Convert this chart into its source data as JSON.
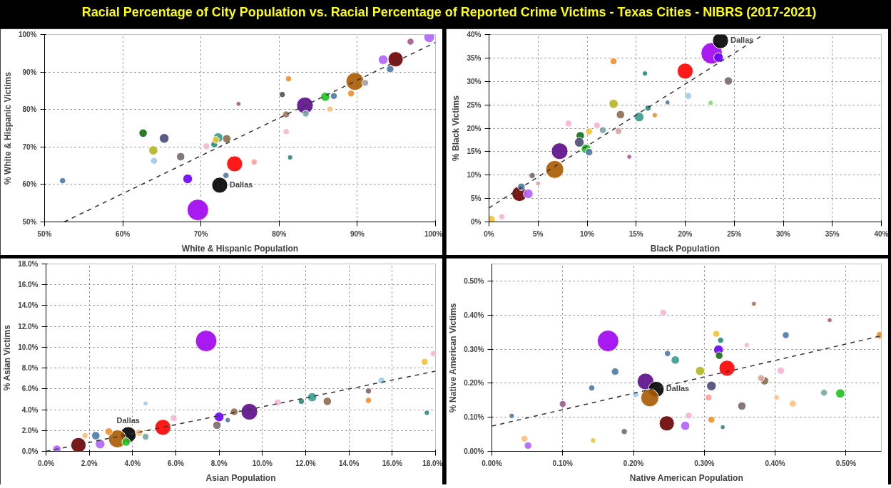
{
  "chart_data": [
    {
      "type": "bubble",
      "title": "Racial Percentage of City Population vs. Racial Percentage of Reported Crime Victims - Texas Cities - NIBRS (2017-2021)",
      "xlabel": "White & Hispanic Population",
      "ylabel": "% White & Hispanic Victims",
      "xlim": [
        50,
        100
      ],
      "ylim": [
        50,
        100
      ],
      "grid": true,
      "xticks": [
        {
          "value": 50,
          "label": "50%"
        },
        {
          "value": 60,
          "label": "60%"
        },
        {
          "value": 70,
          "label": "70%"
        },
        {
          "value": 80,
          "label": "80%"
        },
        {
          "value": 90,
          "label": "90%"
        },
        {
          "value": 100,
          "label": "100%"
        }
      ],
      "yticks": [
        {
          "value": 50,
          "label": "50%"
        },
        {
          "value": 60,
          "label": "60%"
        },
        {
          "value": 70,
          "label": "70%"
        },
        {
          "value": 80,
          "label": "80%"
        },
        {
          "value": 90,
          "label": "90%"
        },
        {
          "value": 100,
          "label": "100%"
        }
      ],
      "annotations": [
        {
          "text": "Dallas",
          "x": 72.4,
          "y": 59.8
        }
      ],
      "series": [
        {
          "type": "bubble",
          "x": [
            69.6,
            72.4,
            74.3,
            83.3,
            89.7,
            94.9,
            52.3,
            62.6,
            65.3,
            63.9,
            64.0,
            67.4,
            68.3,
            76.8,
            72.2,
            73.3,
            70.7,
            71.7,
            71.9,
            73.2,
            74.8,
            80.9,
            80.4,
            81.4,
            80.9,
            81.2,
            85.9,
            87.0,
            91.0,
            89.2,
            86.5,
            94.2,
            93.3,
            96.8,
            99.2,
            83.4
          ],
          "values": [
            53.2,
            59.8,
            65.5,
            81.1,
            87.5,
            93.4,
            61.0,
            73.7,
            72.3,
            69.1,
            66.3,
            67.4,
            61.5,
            66.0,
            72.5,
            72.2,
            70.2,
            70.7,
            71.9,
            62.4,
            81.5,
            78.7,
            84.0,
            67.2,
            74.1,
            88.2,
            83.4,
            83.6,
            87.1,
            84.3,
            80.1,
            90.8,
            93.3,
            98.1,
            99.3,
            78.9
          ],
          "sizes": [
            1,
            0.55,
            0.55,
            0.6,
            0.7,
            0.5,
            0.08,
            0.15,
            0.2,
            0.18,
            0.1,
            0.15,
            0.2,
            0.08,
            0.2,
            0.15,
            0.1,
            0.1,
            0.1,
            0.08,
            0.05,
            0.1,
            0.08,
            0.06,
            0.08,
            0.08,
            0.18,
            0.1,
            0.1,
            0.1,
            0.08,
            0.12,
            0.2,
            0.1,
            0.25,
            0.1
          ],
          "colors": [
            "#a000f0",
            "#000000",
            "#ff0000",
            "#5a0a8a",
            "#a85a00",
            "#6b0000",
            "#4e79a7",
            "#1a6b1a",
            "#4a4a7a",
            "#b5b520",
            "#9ecae9",
            "#7a6a6a",
            "#6a00ff",
            "#ff9d9a",
            "#3a9a90",
            "#8c6d50",
            "#f7b6d2",
            "#2a8a7a",
            "#f1c232",
            "#4e79a7",
            "#9e5b8a",
            "#9c755f",
            "#555555",
            "#2a8a7a",
            "#f7b6d2",
            "#f28e2b",
            "#20c020",
            "#4e79a7",
            "#a0a0a0",
            "#f28e2b",
            "#ffbe7d",
            "#4e79a7",
            "#b060ff",
            "#9e5b8a",
            "#b060ff",
            "#76a8a0"
          ]
        },
        {
          "type": "line",
          "x": [
            52.5,
            100
          ],
          "values": [
            50,
            97.9
          ],
          "color": "#333333",
          "line_style": "dashed"
        }
      ]
    },
    {
      "type": "bubble",
      "xlabel": "Black Population",
      "ylabel": "% Black Victims",
      "xlim": [
        0,
        40
      ],
      "ylim": [
        0,
        40
      ],
      "grid": true,
      "xticks": [
        {
          "value": 0,
          "label": "0%"
        },
        {
          "value": 5,
          "label": "5%"
        },
        {
          "value": 10,
          "label": "10%"
        },
        {
          "value": 15,
          "label": "15%"
        },
        {
          "value": 20,
          "label": "20%"
        },
        {
          "value": 25,
          "label": "25%"
        },
        {
          "value": 30,
          "label": "30%"
        },
        {
          "value": 35,
          "label": "35%"
        },
        {
          "value": 40,
          "label": "40%"
        }
      ],
      "yticks": [
        {
          "value": 0,
          "label": "0%"
        },
        {
          "value": 5,
          "label": "5%"
        },
        {
          "value": 10,
          "label": "10%"
        },
        {
          "value": 15,
          "label": "15%"
        },
        {
          "value": 20,
          "label": "20%"
        },
        {
          "value": 25,
          "label": "25%"
        },
        {
          "value": 30,
          "label": "30%"
        },
        {
          "value": 35,
          "label": "35%"
        },
        {
          "value": 40,
          "label": "40%"
        }
      ],
      "annotations": [
        {
          "text": "Dallas",
          "x": 23.6,
          "y": 38.7
        }
      ],
      "series": [
        {
          "type": "bubble",
          "x": [
            22.7,
            23.6,
            20.0,
            7.2,
            6.7,
            3.1,
            23.4,
            12.7,
            15.9,
            24.4,
            20.3,
            12.7,
            18.2,
            22.6,
            13.4,
            15.3,
            16.2,
            16.9,
            8.1,
            11.0,
            10.2,
            9.3,
            9.2,
            9.9,
            10.2,
            14.3,
            4.4,
            3.3,
            4.0,
            1.3,
            0.2,
            5.0,
            13.2,
            11.6
          ],
          "values": [
            36.0,
            38.7,
            32.2,
            15.1,
            11.2,
            6.0,
            35.1,
            34.3,
            31.7,
            30.1,
            26.9,
            25.2,
            25.5,
            25.4,
            22.9,
            22.4,
            24.3,
            22.8,
            21.0,
            20.6,
            19.3,
            18.4,
            17.0,
            15.6,
            14.9,
            13.9,
            9.9,
            7.5,
            6.0,
            1.1,
            0.5,
            8.2,
            19.4,
            19.6
          ],
          "sizes": [
            1,
            0.55,
            0.55,
            0.6,
            0.7,
            0.5,
            0.2,
            0.1,
            0.06,
            0.15,
            0.1,
            0.18,
            0.05,
            0.06,
            0.15,
            0.2,
            0.08,
            0.06,
            0.1,
            0.1,
            0.1,
            0.15,
            0.2,
            0.2,
            0.12,
            0.05,
            0.08,
            0.12,
            0.2,
            0.08,
            0.15,
            0.05,
            0.1,
            0.1
          ],
          "colors": [
            "#a000f0",
            "#000000",
            "#ff0000",
            "#5a0a8a",
            "#a85a00",
            "#6b0000",
            "#6a00ff",
            "#f28e2b",
            "#2a8a7a",
            "#7a6a6a",
            "#9ecae9",
            "#b5b520",
            "#4e79a7",
            "#8cd17d",
            "#8c6d50",
            "#3a9a90",
            "#2a8a7a",
            "#f28e2b",
            "#f7b6d2",
            "#f7b6d2",
            "#f1c232",
            "#1a6b1a",
            "#4a4a7a",
            "#20c020",
            "#4e79a7",
            "#9e5b8a",
            "#7a6a6a",
            "#4e79a7",
            "#b060ff",
            "#f7b6d2",
            "#f1c232",
            "#d4a6a0",
            "#d4a6a0",
            "#76a8a0"
          ]
        },
        {
          "type": "line",
          "x": [
            0,
            28.0
          ],
          "values": [
            3.0,
            40
          ],
          "color": "#333333",
          "line_style": "dashed"
        }
      ]
    },
    {
      "type": "bubble",
      "xlabel": "Asian Population",
      "ylabel": "% Asian Victims",
      "xlim": [
        0,
        18
      ],
      "ylim": [
        0,
        18
      ],
      "grid": true,
      "xticks": [
        {
          "value": 0,
          "label": "0.0%"
        },
        {
          "value": 2,
          "label": "2.0%"
        },
        {
          "value": 4,
          "label": "4.0%"
        },
        {
          "value": 6,
          "label": "6.0%"
        },
        {
          "value": 8,
          "label": "8.0%"
        },
        {
          "value": 10,
          "label": "10.0%"
        },
        {
          "value": 12,
          "label": "12.0%"
        },
        {
          "value": 14,
          "label": "14.0%"
        },
        {
          "value": 16,
          "label": "16.0%"
        },
        {
          "value": 18,
          "label": "18.0%"
        }
      ],
      "yticks": [
        {
          "value": 0,
          "label": "0.0%"
        },
        {
          "value": 2,
          "label": "2.0%"
        },
        {
          "value": 4,
          "label": "4.0%"
        },
        {
          "value": 6,
          "label": "6.0%"
        },
        {
          "value": 8,
          "label": "8.0%"
        },
        {
          "value": 10,
          "label": "10.0%"
        },
        {
          "value": 12,
          "label": "12.0%"
        },
        {
          "value": 14,
          "label": "14.0%"
        },
        {
          "value": 16,
          "label": "16.0%"
        },
        {
          "value": 18,
          "label": "18.0%"
        }
      ],
      "annotations": [
        {
          "text": "Dallas",
          "x": 3.8,
          "y": 1.6
        }
      ],
      "series": [
        {
          "type": "bubble",
          "x": [
            7.4,
            3.8,
            5.4,
            9.4,
            3.3,
            1.5,
            17.9,
            17.5,
            15.5,
            14.9,
            14.9,
            17.6,
            12.3,
            11.8,
            13.0,
            10.7,
            8.7,
            8.0,
            8.4,
            7.9,
            5.9,
            4.6,
            4.6,
            2.9,
            2.3,
            1.8,
            2.5,
            0.5,
            4.3,
            3.7
          ],
          "values": [
            10.6,
            1.6,
            2.3,
            3.8,
            1.2,
            0.6,
            9.4,
            8.6,
            6.8,
            5.8,
            4.9,
            3.7,
            5.2,
            4.8,
            4.8,
            4.7,
            3.8,
            3.3,
            3.0,
            2.5,
            3.2,
            4.6,
            1.4,
            1.9,
            1.5,
            1.5,
            0.7,
            0.2,
            1.8,
            0.9
          ],
          "sizes": [
            1,
            0.55,
            0.55,
            0.6,
            0.7,
            0.5,
            0.08,
            0.1,
            0.1,
            0.08,
            0.08,
            0.06,
            0.18,
            0.08,
            0.15,
            0.1,
            0.12,
            0.2,
            0.06,
            0.15,
            0.1,
            0.05,
            0.1,
            0.12,
            0.15,
            0.08,
            0.2,
            0.15,
            0.12,
            0.15
          ],
          "colors": [
            "#a000f0",
            "#000000",
            "#ff0000",
            "#5a0a8a",
            "#a85a00",
            "#6b0000",
            "#f7b6d2",
            "#f1c232",
            "#9ecae9",
            "#7a6a6a",
            "#f28e2b",
            "#2a8a7a",
            "#3a9a90",
            "#2a8a7a",
            "#8c6d50",
            "#f7b6d2",
            "#8c6d50",
            "#6a00ff",
            "#4e79a7",
            "#7a6a6a",
            "#f7b6d2",
            "#9ecae9",
            "#76a8a0",
            "#f28e2b",
            "#4e79a7",
            "#ffbe7d",
            "#b060ff",
            "#b060ff",
            "#ffbe7d",
            "#20c020"
          ]
        },
        {
          "type": "line",
          "x": [
            0,
            18
          ],
          "values": [
            0,
            7.7
          ],
          "color": "#333333",
          "line_style": "dashed"
        }
      ]
    },
    {
      "type": "bubble",
      "xlabel": "Native American Population",
      "ylabel": "% Native American Victims",
      "xlim": [
        0,
        0.55
      ],
      "ylim": [
        0,
        0.55
      ],
      "grid": true,
      "xticks": [
        {
          "value": 0,
          "label": "0.00%"
        },
        {
          "value": 0.1,
          "label": "0.10%"
        },
        {
          "value": 0.2,
          "label": "0.20%"
        },
        {
          "value": 0.3,
          "label": "0.30%"
        },
        {
          "value": 0.4,
          "label": "0.40%"
        },
        {
          "value": 0.5,
          "label": "0.50%"
        }
      ],
      "yticks": [
        {
          "value": 0,
          "label": "0.00%"
        },
        {
          "value": 0.1,
          "label": "0.10%"
        },
        {
          "value": 0.2,
          "label": "0.20%"
        },
        {
          "value": 0.3,
          "label": "0.30%"
        },
        {
          "value": 0.4,
          "label": "0.40%"
        },
        {
          "value": 0.5,
          "label": "0.50%"
        }
      ],
      "annotations": [
        {
          "text": "Dallas",
          "x": 0.232,
          "y": 0.182
        }
      ],
      "series": [
        {
          "type": "bubble",
          "x": [
            0.164,
            0.217,
            0.232,
            0.223,
            0.247,
            0.332,
            0.273,
            0.32,
            0.321,
            0.323,
            0.317,
            0.248,
            0.259,
            0.294,
            0.31,
            0.174,
            0.141,
            0.1,
            0.028,
            0.046,
            0.051,
            0.143,
            0.187,
            0.242,
            0.37,
            0.477,
            0.415,
            0.548,
            0.36,
            0.408,
            0.385,
            0.38,
            0.469,
            0.492,
            0.353,
            0.425,
            0.31,
            0.326,
            0.306,
            0.402,
            0.203,
            0.278
          ],
          "values": [
            0.324,
            0.205,
            0.182,
            0.157,
            0.082,
            0.244,
            0.075,
            0.298,
            0.281,
            0.326,
            0.345,
            0.287,
            0.268,
            0.236,
            0.192,
            0.234,
            0.186,
            0.139,
            0.104,
            0.037,
            0.017,
            0.032,
            0.058,
            0.407,
            0.433,
            0.385,
            0.341,
            0.341,
            0.312,
            0.237,
            0.207,
            0.215,
            0.172,
            0.17,
            0.133,
            0.14,
            0.093,
            0.071,
            0.158,
            0.158,
            0.167,
            0.105
          ],
          "sizes": [
            1,
            0.6,
            0.55,
            0.7,
            0.5,
            0.55,
            0.18,
            0.2,
            0.12,
            0.08,
            0.1,
            0.08,
            0.15,
            0.18,
            0.2,
            0.12,
            0.08,
            0.1,
            0.06,
            0.1,
            0.12,
            0.06,
            0.08,
            0.1,
            0.05,
            0.05,
            0.1,
            0.12,
            0.06,
            0.12,
            0.15,
            0.1,
            0.1,
            0.18,
            0.15,
            0.1,
            0.1,
            0.05,
            0.1,
            0.06,
            0.08,
            0.1
          ],
          "colors": [
            "#a000f0",
            "#5a0a8a",
            "#000000",
            "#a85a00",
            "#6b0000",
            "#ff0000",
            "#b060ff",
            "#6a00ff",
            "#1a6b1a",
            "#2a8a7a",
            "#f1c232",
            "#4e79a7",
            "#3a9a90",
            "#b5b520",
            "#4a4a7a",
            "#4e79a7",
            "#4e79a7",
            "#9e5b8a",
            "#4e79a7",
            "#ffbe7d",
            "#b060ff",
            "#f1c232",
            "#7a6a6a",
            "#f7b6d2",
            "#9c755f",
            "#9e5b8a",
            "#4e79a7",
            "#f28e2b",
            "#f7b6d2",
            "#f7b6d2",
            "#8c6d50",
            "#d4a6a0",
            "#76a8a0",
            "#20c020",
            "#7a6a6a",
            "#ffbe7d",
            "#f28e2b",
            "#2a8a7a",
            "#ff9d9a",
            "#ffbe7d",
            "#9ecae9",
            "#f7b6d2"
          ]
        },
        {
          "type": "line",
          "x": [
            0,
            0.55
          ],
          "values": [
            0.074,
            0.339
          ],
          "color": "#333333",
          "line_style": "dashed"
        }
      ]
    }
  ]
}
